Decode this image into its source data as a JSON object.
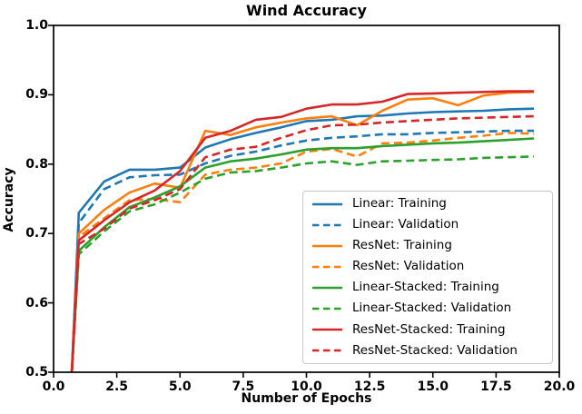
{
  "title": "Wind Accuracy",
  "chart_data": {
    "type": "line",
    "title": "Wind Accuracy",
    "xlabel": "Number of Epochs",
    "ylabel": "Accuracy",
    "xlim": [
      0,
      20
    ],
    "ylim": [
      0.5,
      1.0
    ],
    "grid": false,
    "legend_position": "lower-right-inside",
    "axis_color": "#000000",
    "xticks": {
      "values": [
        0,
        2.5,
        5,
        7.5,
        10,
        12.5,
        15,
        17.5,
        20
      ],
      "labels": [
        "0.0",
        "2.5",
        "5.0",
        "7.5",
        "10.0",
        "12.5",
        "15.0",
        "17.5",
        "20.0"
      ]
    },
    "yticks": {
      "values": [
        0.5,
        0.6,
        0.7,
        0.8,
        0.9,
        1.0
      ],
      "labels": [
        "0.5",
        "0.6",
        "0.7",
        "0.8",
        "0.9",
        "1.0"
      ]
    },
    "x": [
      0.72,
      1,
      2,
      3,
      4,
      5,
      6,
      7,
      8,
      9,
      10,
      11,
      12,
      13,
      14,
      15,
      16,
      17,
      18,
      19
    ],
    "series": [
      {
        "name": "Linear: Training",
        "color": "#1f77b4",
        "style": "solid",
        "values": [
          0.5,
          0.73,
          0.775,
          0.792,
          0.792,
          0.795,
          0.824,
          0.836,
          0.845,
          0.853,
          0.862,
          0.864,
          0.869,
          0.87,
          0.873,
          0.875,
          0.876,
          0.877,
          0.879,
          0.88
        ]
      },
      {
        "name": "Linear: Validation",
        "color": "#1f77b4",
        "style": "dashed",
        "values": [
          0.5,
          0.715,
          0.764,
          0.781,
          0.784,
          0.785,
          0.801,
          0.812,
          0.818,
          0.827,
          0.834,
          0.838,
          0.84,
          0.843,
          0.843,
          0.845,
          0.846,
          0.847,
          0.848,
          0.848
        ]
      },
      {
        "name": "ResNet: Training",
        "color": "#ff7f0e",
        "style": "solid",
        "values": [
          0.5,
          0.7,
          0.734,
          0.759,
          0.772,
          0.766,
          0.848,
          0.842,
          0.853,
          0.86,
          0.866,
          0.869,
          0.856,
          0.877,
          0.893,
          0.895,
          0.885,
          0.899,
          0.903,
          0.904
        ]
      },
      {
        "name": "ResNet: Validation",
        "color": "#ff7f0e",
        "style": "dashed",
        "values": [
          0.5,
          0.695,
          0.722,
          0.748,
          0.75,
          0.745,
          0.785,
          0.792,
          0.795,
          0.801,
          0.818,
          0.822,
          0.811,
          0.83,
          0.831,
          0.834,
          0.838,
          0.841,
          0.845,
          0.844
        ]
      },
      {
        "name": "Linear-Stacked: Training",
        "color": "#2ca02c",
        "style": "solid",
        "values": [
          0.5,
          0.675,
          0.709,
          0.738,
          0.752,
          0.768,
          0.795,
          0.804,
          0.808,
          0.814,
          0.821,
          0.823,
          0.823,
          0.826,
          0.828,
          0.83,
          0.831,
          0.833,
          0.835,
          0.837
        ]
      },
      {
        "name": "Linear-Stacked: Validation",
        "color": "#2ca02c",
        "style": "dashed",
        "values": [
          0.5,
          0.67,
          0.703,
          0.732,
          0.742,
          0.759,
          0.779,
          0.788,
          0.79,
          0.795,
          0.801,
          0.804,
          0.799,
          0.804,
          0.805,
          0.806,
          0.807,
          0.809,
          0.81,
          0.811
        ]
      },
      {
        "name": "ResNet-Stacked: Training",
        "color": "#d62728",
        "style": "solid",
        "values": [
          0.5,
          0.69,
          0.719,
          0.745,
          0.762,
          0.79,
          0.838,
          0.848,
          0.864,
          0.868,
          0.88,
          0.886,
          0.886,
          0.89,
          0.901,
          0.902,
          0.903,
          0.904,
          0.905,
          0.905
        ]
      },
      {
        "name": "ResNet-Stacked: Validation",
        "color": "#d62728",
        "style": "dashed",
        "values": [
          0.5,
          0.685,
          0.707,
          0.736,
          0.748,
          0.764,
          0.81,
          0.821,
          0.825,
          0.838,
          0.849,
          0.856,
          0.857,
          0.86,
          0.862,
          0.864,
          0.866,
          0.867,
          0.868,
          0.869
        ]
      }
    ]
  }
}
